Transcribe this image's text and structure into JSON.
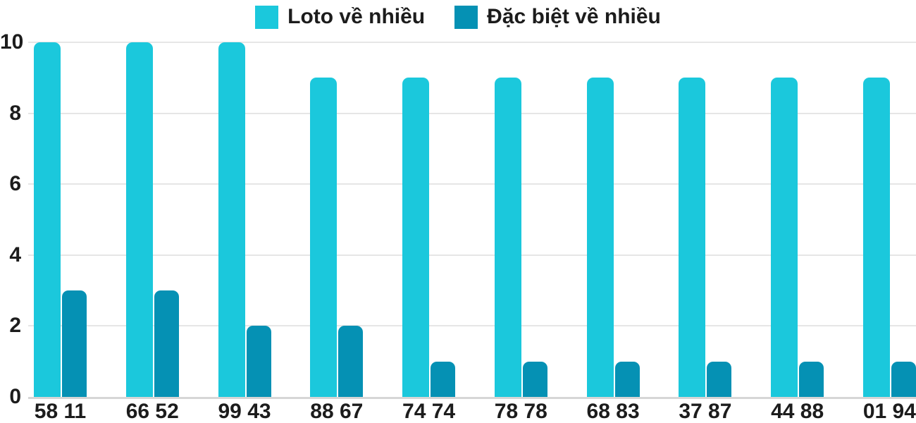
{
  "chart_data": {
    "type": "bar",
    "title": "",
    "categories": [
      "58 11",
      "66 52",
      "99 43",
      "88 67",
      "74 74",
      "78 78",
      "68 83",
      "37 87",
      "44 88",
      "01 94"
    ],
    "series": [
      {
        "name": "Loto về nhiều",
        "color": "#1bc8dc",
        "values": [
          10,
          10,
          10,
          9,
          9,
          9,
          9,
          9,
          9,
          9
        ]
      },
      {
        "name": "Đặc biệt về nhiều",
        "color": "#0591b4",
        "values": [
          3,
          3,
          2,
          2,
          1,
          1,
          1,
          1,
          1,
          1
        ]
      }
    ],
    "xlabel": "",
    "ylabel": "",
    "ylim": [
      0,
      10
    ],
    "yticks": [
      0,
      2,
      4,
      6,
      8,
      10
    ],
    "grid": true,
    "legend_position": "top-center"
  },
  "colors": {
    "background": "#ffffff",
    "gridline": "#e6e6e6",
    "baseline": "#d6d6d6",
    "text": "#1c1c1c"
  }
}
